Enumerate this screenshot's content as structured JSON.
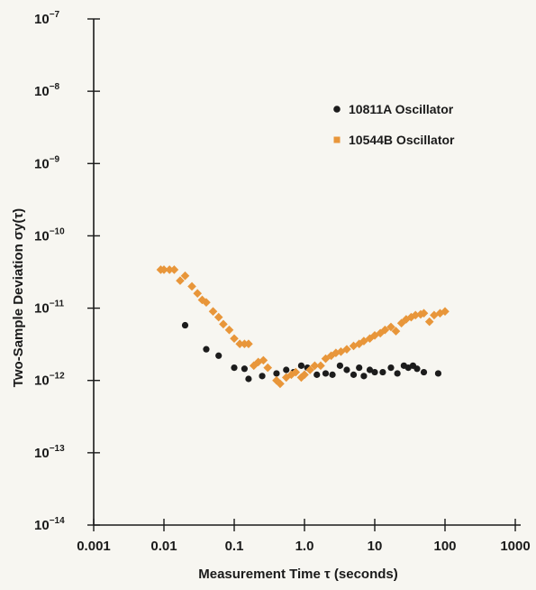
{
  "chart_data": {
    "type": "scatter",
    "title": "",
    "xlabel": "Measurement Time τ (seconds)",
    "ylabel": "Two-Sample Deviation σy(τ)",
    "xscale": "log",
    "yscale": "log",
    "xlim": [
      0.001,
      1000
    ],
    "ylim": [
      1e-14,
      1e-07
    ],
    "x_ticks": [
      {
        "value": 0.001,
        "label": "0.001"
      },
      {
        "value": 0.01,
        "label": "0.01"
      },
      {
        "value": 0.1,
        "label": "0.1"
      },
      {
        "value": 1,
        "label": "1.0"
      },
      {
        "value": 10,
        "label": "10"
      },
      {
        "value": 100,
        "label": "100"
      },
      {
        "value": 1000,
        "label": "1000"
      }
    ],
    "y_ticks": [
      {
        "value": 1e-07,
        "base": "10",
        "exp": "−7"
      },
      {
        "value": 1e-08,
        "base": "10",
        "exp": "−8"
      },
      {
        "value": 1e-09,
        "base": "10",
        "exp": "−9"
      },
      {
        "value": 1e-10,
        "base": "10",
        "exp": "−10"
      },
      {
        "value": 1e-11,
        "base": "10",
        "exp": "−11"
      },
      {
        "value": 1e-12,
        "base": "10",
        "exp": "−12"
      },
      {
        "value": 1e-13,
        "base": "10",
        "exp": "−13"
      },
      {
        "value": 1e-14,
        "base": "10",
        "exp": "−14"
      }
    ],
    "grid": false,
    "legend_position": "top-right",
    "series": [
      {
        "name": "10811A Oscillator",
        "color": "#1c1c1c",
        "marker": "circle",
        "x": [
          0.02,
          0.04,
          0.06,
          0.1,
          0.14,
          0.16,
          0.25,
          0.4,
          0.55,
          0.7,
          0.9,
          1.1,
          1.5,
          2.0,
          2.5,
          3.2,
          4.0,
          5.0,
          6.0,
          7.0,
          8.5,
          10,
          13,
          17,
          21,
          26,
          30,
          35,
          40,
          50,
          80
        ],
        "y": [
          5.8e-12,
          2.7e-12,
          2.2e-12,
          1.5e-12,
          1.45e-12,
          1.05e-12,
          1.15e-12,
          1.25e-12,
          1.4e-12,
          1.3e-12,
          1.6e-12,
          1.5e-12,
          1.2e-12,
          1.25e-12,
          1.2e-12,
          1.6e-12,
          1.4e-12,
          1.2e-12,
          1.5e-12,
          1.15e-12,
          1.4e-12,
          1.3e-12,
          1.3e-12,
          1.5e-12,
          1.25e-12,
          1.6e-12,
          1.5e-12,
          1.6e-12,
          1.45e-12,
          1.3e-12,
          1.25e-12
        ]
      },
      {
        "name": "10544B Oscillator",
        "color": "#e8963a",
        "marker": "square",
        "x": [
          0.009,
          0.01,
          0.012,
          0.014,
          0.017,
          0.02,
          0.025,
          0.03,
          0.035,
          0.04,
          0.05,
          0.06,
          0.07,
          0.085,
          0.1,
          0.12,
          0.14,
          0.16,
          0.19,
          0.22,
          0.26,
          0.3,
          0.4,
          0.45,
          0.55,
          0.65,
          0.75,
          0.9,
          1.0,
          1.2,
          1.4,
          1.7,
          2.0,
          2.4,
          2.8,
          3.3,
          4.0,
          5.0,
          6.0,
          7.0,
          8.5,
          10,
          12,
          14,
          17,
          20,
          24,
          28,
          33,
          38,
          45,
          50,
          60,
          70,
          85,
          100
        ],
        "y": [
          3.4e-11,
          3.4e-11,
          3.4e-11,
          3.4e-11,
          2.4e-11,
          2.8e-11,
          2e-11,
          1.6e-11,
          1.3e-11,
          1.2e-11,
          9e-12,
          7.5e-12,
          6e-12,
          5e-12,
          3.8e-12,
          3.2e-12,
          3.2e-12,
          3.2e-12,
          1.6e-12,
          1.8e-12,
          1.9e-12,
          1.5e-12,
          1e-12,
          9e-13,
          1.1e-12,
          1.2e-12,
          1.3e-12,
          1.1e-12,
          1.2e-12,
          1.4e-12,
          1.6e-12,
          1.6e-12,
          2e-12,
          2.2e-12,
          2.4e-12,
          2.5e-12,
          2.7e-12,
          3e-12,
          3.2e-12,
          3.5e-12,
          3.8e-12,
          4.2e-12,
          4.5e-12,
          5e-12,
          5.5e-12,
          4.8e-12,
          6.2e-12,
          7e-12,
          7.5e-12,
          8e-12,
          8.2e-12,
          8.5e-12,
          6.5e-12,
          8e-12,
          8.5e-12,
          9e-12
        ]
      }
    ]
  }
}
